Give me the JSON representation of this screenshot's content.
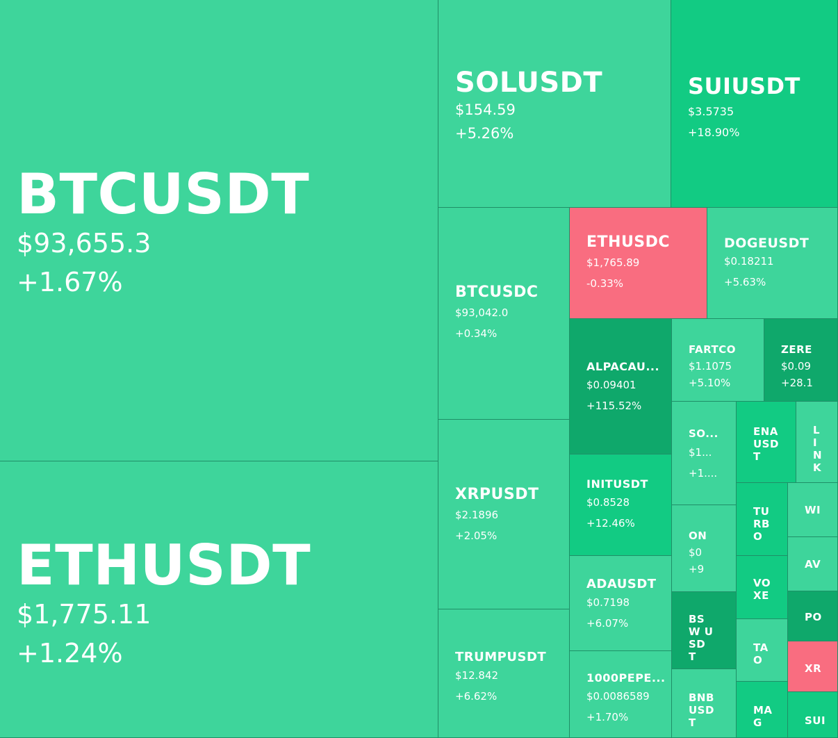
{
  "tiles": {
    "btcusdt": {
      "symbol": "BTCUSDT",
      "price": "$93,655.3",
      "change": "+1.67%"
    },
    "ethusdt": {
      "symbol": "ETHUSDT",
      "price": "$1,775.11",
      "change": "+1.24%"
    },
    "solusdt": {
      "symbol": "SOLUSDT",
      "price": "$154.59",
      "change": "+5.26%"
    },
    "suiusdt": {
      "symbol": "SUIUSDT",
      "price": "$3.5735",
      "change": "+18.90%"
    },
    "btcusdc": {
      "symbol": "BTCUSDC",
      "price": "$93,042.0",
      "change": "+0.34%"
    },
    "ethusdc": {
      "symbol": "ETHUSDC",
      "price": "$1,765.89",
      "change": "-0.33%"
    },
    "dogeusdt": {
      "symbol": "DOGEUSDT",
      "price": "$0.18211",
      "change": "+5.63%"
    },
    "xrpusdt": {
      "symbol": "XRPUSDT",
      "price": "$2.1896",
      "change": "+2.05%"
    },
    "trumpusdt": {
      "symbol": "TRUMPUSDT",
      "price": "$12.842",
      "change": "+6.62%"
    },
    "alpacausdt": {
      "symbol": "ALPACAU...",
      "price": "$0.09401",
      "change": "+115.52%"
    },
    "initusdt": {
      "symbol": "INITUSDT",
      "price": "$0.8528",
      "change": "+12.46%"
    },
    "adausdt": {
      "symbol": "ADAUSDT",
      "price": "$0.7198",
      "change": "+6.07%"
    },
    "1000pepe": {
      "symbol": "1000PEPE...",
      "price": "$0.0086589",
      "change": "+1.70%"
    },
    "fartco": {
      "symbol": "FARTCO",
      "price": "$1.1075",
      "change": "+5.10%"
    },
    "zere": {
      "symbol": "ZERE",
      "price": "$0.09",
      "change": "+28.1"
    },
    "so": {
      "symbol": "SO...",
      "price": "$1...",
      "change": "+1...."
    },
    "ena": {
      "symbol": "ENA USD T"
    },
    "link": {
      "symbol": "LI N K"
    },
    "on": {
      "symbol": "ON",
      "price": "$0",
      "change": "+9"
    },
    "turbo": {
      "symbol": "TU RB O"
    },
    "wi": {
      "symbol": "WI"
    },
    "av": {
      "symbol": "AV"
    },
    "vo": {
      "symbol": "VO XE"
    },
    "bsw": {
      "symbol": "BSW USD T"
    },
    "po": {
      "symbol": "PO"
    },
    "ta": {
      "symbol": "TA O"
    },
    "xr": {
      "symbol": "XR"
    },
    "bnb": {
      "symbol": "BNB USD T"
    },
    "ma": {
      "symbol": "MA G"
    },
    "sui2": {
      "symbol": "SUI"
    }
  },
  "colors": {
    "base": "#3ed59b",
    "mid": "#12cb83",
    "dark": "#0fa86b",
    "red": "#f96d80",
    "border": "#1f8f67"
  }
}
